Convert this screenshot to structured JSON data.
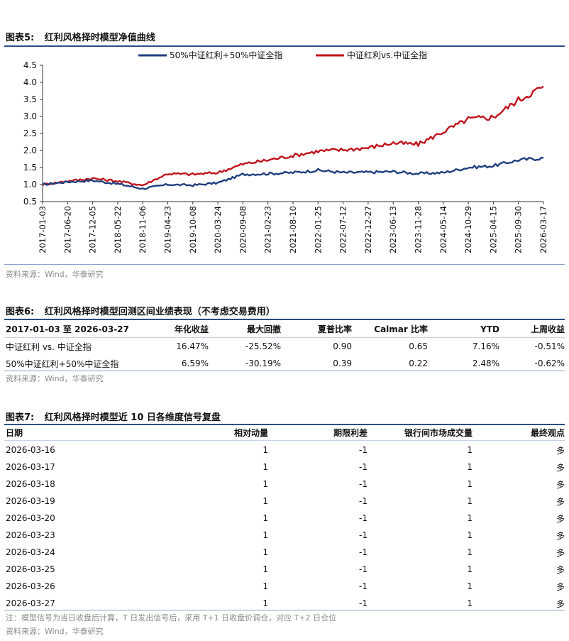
{
  "figure5": {
    "label": "图表5:",
    "title": "红利风格择时模型净值曲线",
    "source": "资料来源：Wind，华泰研究"
  },
  "chart_data": {
    "type": "line",
    "title": "红利风格择时模型净值曲线",
    "xlabel": "",
    "ylabel": "",
    "ylim": [
      0.5,
      4.5
    ],
    "yticks": [
      "0.5",
      "1.0",
      "1.5",
      "2.0",
      "2.5",
      "3.0",
      "3.5",
      "4.0",
      "4.5"
    ],
    "categories": [
      "2017-01-03",
      "2017-06-20",
      "2017-12-05",
      "2018-05-22",
      "2018-11-06",
      "2019-04-23",
      "2019-10-08",
      "2020-03-24",
      "2020-09-08",
      "2021-02-23",
      "2021-08-10",
      "2022-01-25",
      "2022-07-12",
      "2022-12-27",
      "2023-06-13",
      "2023-11-28",
      "2024-05-14",
      "2024-10-29",
      "2025-04-15",
      "2025-09-30",
      "2026-03-17"
    ],
    "legend_position": "top",
    "series": [
      {
        "name": "50%中证红利+50%中证全指",
        "color": "#1f3f7f",
        "values": [
          1.0,
          1.08,
          1.12,
          1.02,
          0.88,
          1.0,
          0.98,
          1.05,
          1.3,
          1.32,
          1.35,
          1.42,
          1.35,
          1.36,
          1.38,
          1.32,
          1.35,
          1.5,
          1.55,
          1.72,
          1.78
        ]
      },
      {
        "name": "中证红利vs.中证全指",
        "color": "#c0141b",
        "values": [
          1.0,
          1.1,
          1.18,
          1.1,
          0.98,
          1.32,
          1.3,
          1.35,
          1.6,
          1.72,
          1.85,
          1.98,
          2.02,
          2.08,
          2.22,
          2.18,
          2.55,
          2.92,
          2.98,
          3.48,
          3.88
        ]
      }
    ]
  },
  "figure6": {
    "label": "图表6:",
    "title": "红利风格择时模型回测区间业绩表现（不考虑交易费用）",
    "headers": [
      "2017-01-03 至 2026-03-27",
      "年化收益",
      "最大回撤",
      "夏普比率",
      "Calmar 比率",
      "YTD",
      "上周收益"
    ],
    "rows": [
      [
        "中证红利 vs. 中证全指",
        "16.47%",
        "-25.52%",
        "0.90",
        "0.65",
        "7.16%",
        "-0.51%"
      ],
      [
        "50%中证红利+50%中证全指",
        "6.59%",
        "-30.19%",
        "0.39",
        "0.22",
        "2.48%",
        "-0.62%"
      ]
    ],
    "source": "资料来源：Wind，华泰研究"
  },
  "figure7": {
    "label": "图表7:",
    "title": "红利风格择时模型近 10 日各维度信号复盘",
    "headers": [
      "日期",
      "相对动量",
      "期限利差",
      "银行间市场成交量",
      "最终观点"
    ],
    "rows": [
      [
        "2026-03-16",
        "1",
        "-1",
        "1",
        "多"
      ],
      [
        "2026-03-17",
        "1",
        "-1",
        "1",
        "多"
      ],
      [
        "2026-03-18",
        "1",
        "-1",
        "1",
        "多"
      ],
      [
        "2026-03-19",
        "1",
        "-1",
        "1",
        "多"
      ],
      [
        "2026-03-20",
        "1",
        "-1",
        "1",
        "多"
      ],
      [
        "2026-03-23",
        "1",
        "-1",
        "1",
        "多"
      ],
      [
        "2026-03-24",
        "1",
        "-1",
        "1",
        "多"
      ],
      [
        "2026-03-25",
        "1",
        "-1",
        "1",
        "多"
      ],
      [
        "2026-03-26",
        "1",
        "-1",
        "1",
        "多"
      ],
      [
        "2026-03-27",
        "1",
        "-1",
        "1",
        "多"
      ]
    ],
    "note": "注：模型信号为当日收盘后计算，T 日发出信号后，采用 T+1 日收盘价调仓，对应 T+2 日仓位",
    "source": "资料来源：Wind，华泰研究"
  }
}
